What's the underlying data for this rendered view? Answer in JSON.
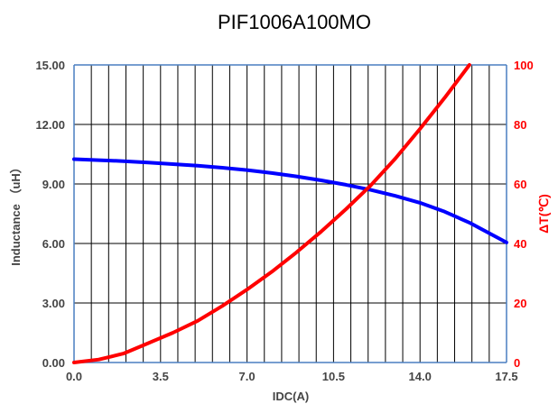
{
  "chart_data": {
    "type": "line",
    "title": "PIF1006A100MO",
    "xlabel": "IDC(A)",
    "ylabel_left": "Inductance （uH）",
    "ylabel_right": "ΔT(℃)",
    "xlim": [
      0,
      17.5
    ],
    "ylim_left": [
      0,
      15
    ],
    "ylim_right": [
      0,
      100
    ],
    "x_ticks": [
      0,
      3.5,
      7,
      10.5,
      14,
      17.5
    ],
    "x_tick_labels": [
      "0.0",
      "3.5",
      "7.0",
      "10.5",
      "14.0",
      "17.5"
    ],
    "y_left_ticks": [
      0,
      3,
      6,
      9,
      12,
      15
    ],
    "y_left_tick_labels": [
      "0.00",
      "3.00",
      "6.00",
      "9.00",
      "12.00",
      "15.00"
    ],
    "y_right_ticks": [
      0,
      20,
      40,
      60,
      80,
      100
    ],
    "y_right_tick_labels": [
      "0",
      "20",
      "40",
      "60",
      "80",
      "100"
    ],
    "grid": "vertical lines every 0.7 A, horizontal lines at left-axis ticks",
    "series": [
      {
        "axis": "left",
        "color": "#0000ff",
        "x": [
          0,
          1,
          2,
          3,
          4,
          5,
          6,
          7,
          8,
          9,
          10,
          11,
          12,
          13,
          14,
          15,
          16,
          17.5
        ],
        "y": [
          10.25,
          10.2,
          10.15,
          10.08,
          10.0,
          9.92,
          9.82,
          9.7,
          9.55,
          9.38,
          9.18,
          8.96,
          8.7,
          8.4,
          8.05,
          7.6,
          7.05,
          6.05
        ]
      },
      {
        "axis": "right",
        "color": "#ff0000",
        "x": [
          0,
          1,
          1.5,
          2,
          3,
          4,
          5,
          6,
          7,
          8,
          9,
          10,
          11,
          12,
          13,
          14,
          15,
          16
        ],
        "y": [
          0,
          1,
          2,
          3,
          6.5,
          10,
          14,
          19,
          24.5,
          30.5,
          37,
          44,
          51.5,
          59.5,
          68.5,
          78.5,
          89,
          100
        ]
      }
    ]
  }
}
